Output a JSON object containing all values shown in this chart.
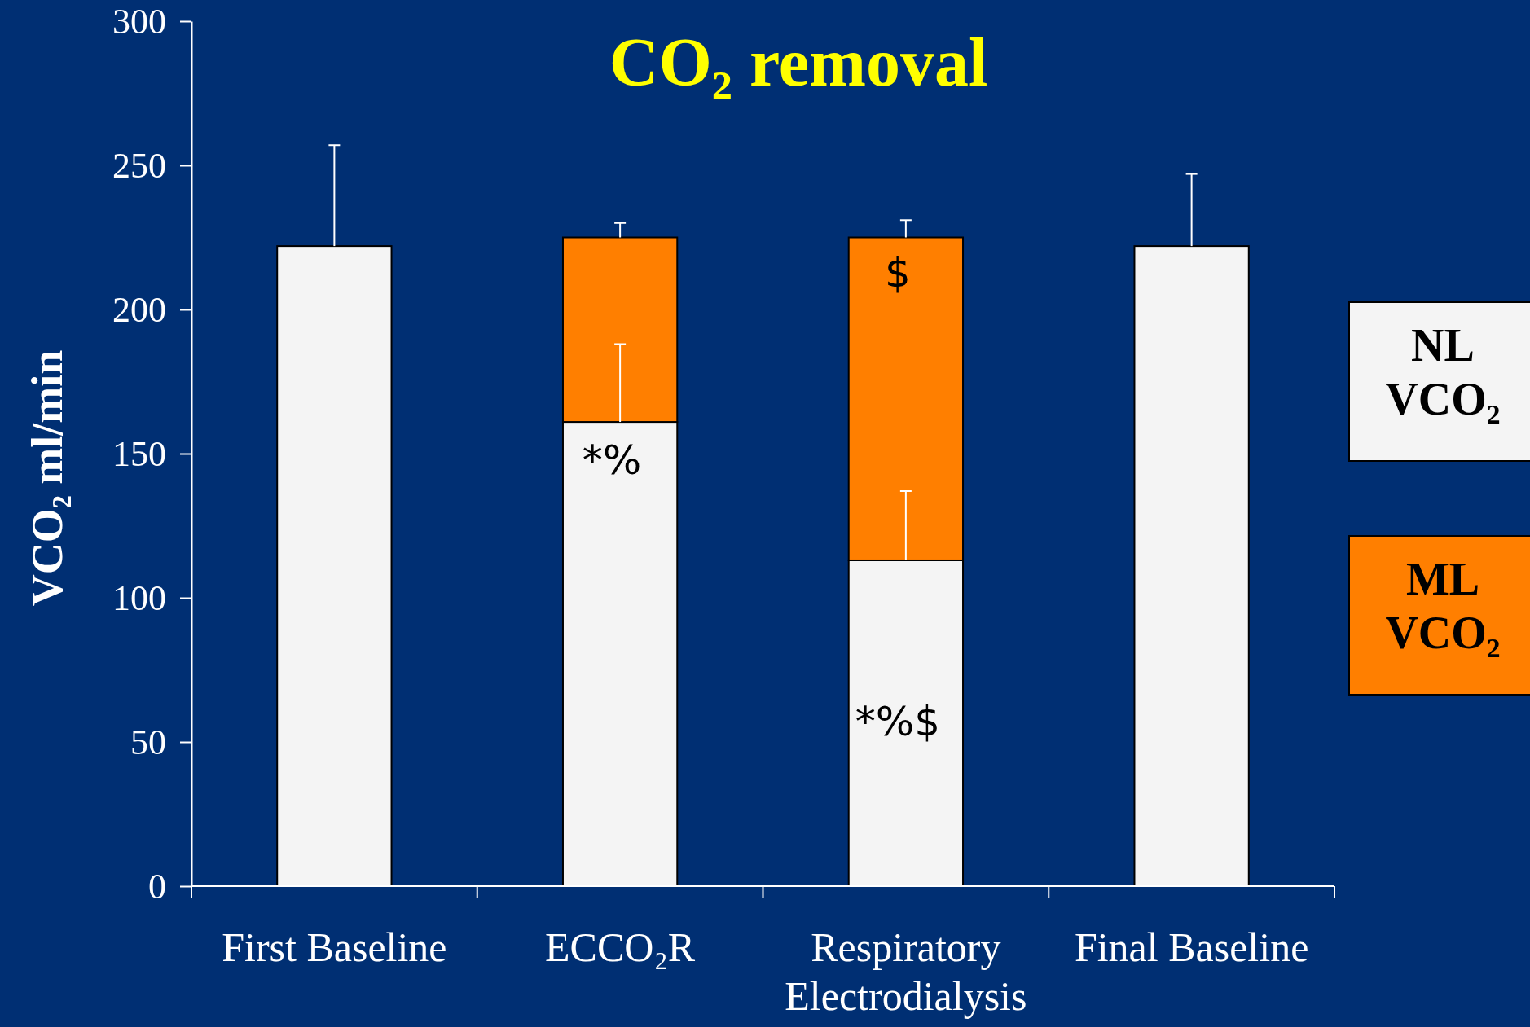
{
  "chart_data": {
    "type": "bar",
    "title": "CO₂ removal",
    "ylabel": "VCO₂  ml/min",
    "categories": [
      "First Baseline",
      "ECCO₂R",
      "Respiratory Electrodialysis",
      "Final Baseline"
    ],
    "stacked": true,
    "series": [
      {
        "name": "NL VCO₂",
        "color": "#f4f4f4",
        "values": [
          222,
          161,
          113,
          222
        ],
        "errors": [
          [
            222,
            257
          ],
          [
            161,
            188
          ],
          [
            113,
            137
          ],
          [
            222,
            247
          ]
        ]
      },
      {
        "name": "ML VCO₂",
        "color": "#ff7f00",
        "values": [
          null,
          64,
          112,
          null
        ],
        "errors": [
          null,
          [
            225,
            230
          ],
          [
            225,
            231
          ],
          null
        ]
      }
    ],
    "ylim": [
      0,
      300
    ],
    "yticks": [
      0,
      50,
      100,
      150,
      200,
      250,
      300
    ],
    "legend": "right",
    "annotations": [
      "*%",
      "$",
      "*%$"
    ]
  }
}
